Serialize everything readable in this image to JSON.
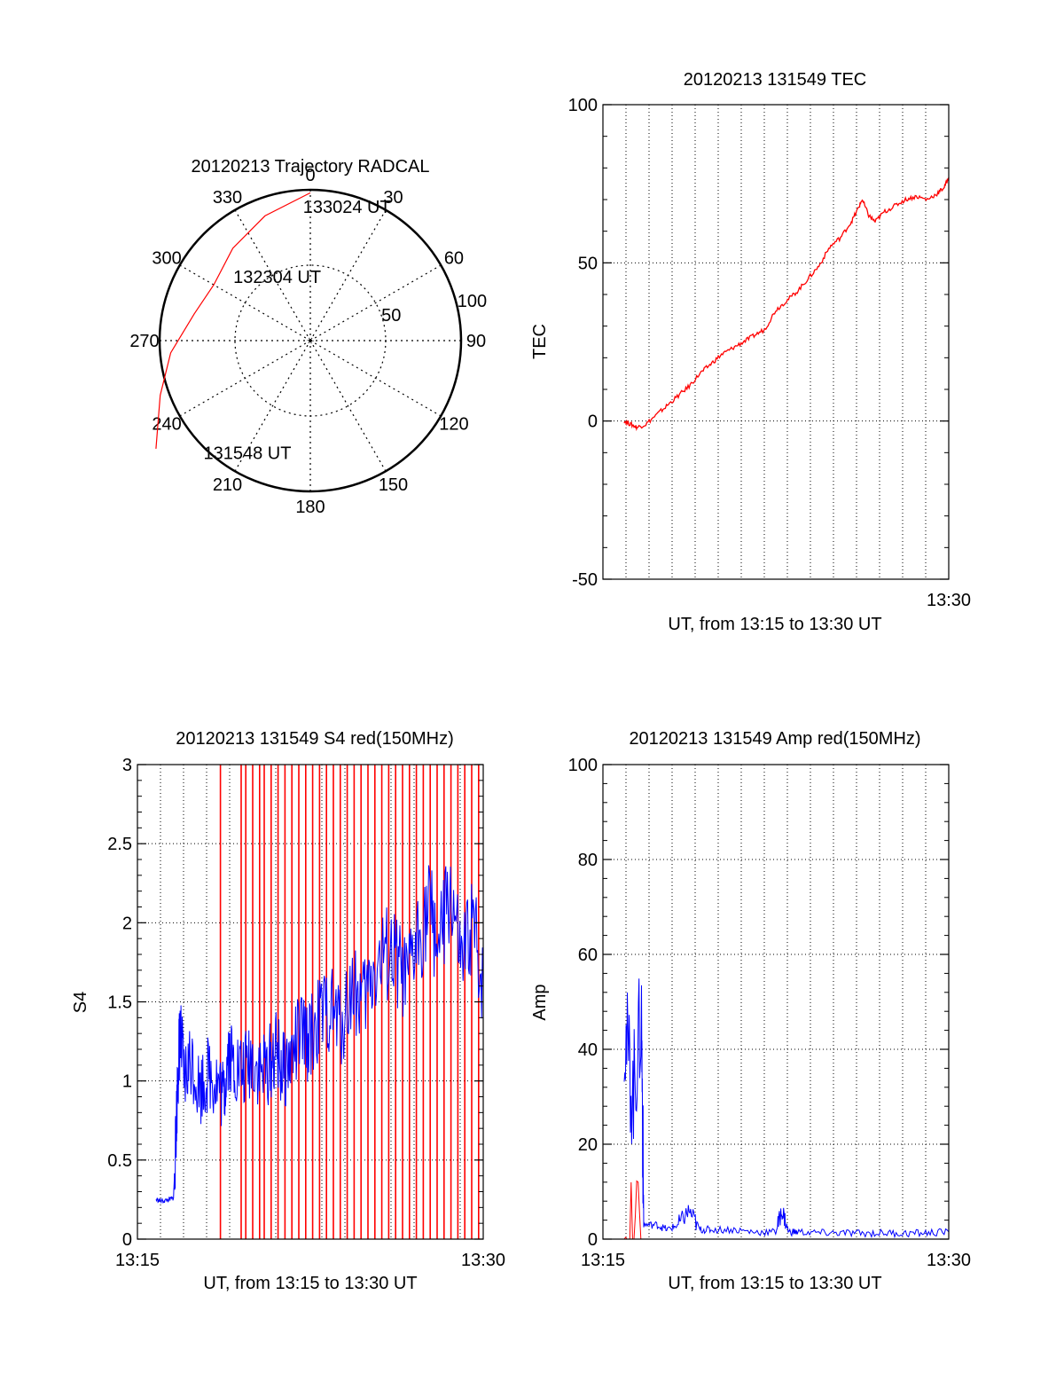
{
  "chart_data": [
    {
      "id": "polar",
      "type": "polar",
      "title": "20120213 Trajectory RADCAL",
      "azimuth_labels": [
        "0",
        "30",
        "60",
        "90",
        "120",
        "150",
        "180",
        "210",
        "240",
        "270",
        "300",
        "330"
      ],
      "radial_ring_labels": [
        "50",
        "100"
      ],
      "radial_max": 100,
      "track": {
        "points": [
          {
            "az": 0,
            "el_pct": 98
          },
          {
            "az": 340,
            "el_pct": 88
          },
          {
            "az": 320,
            "el_pct": 80
          },
          {
            "az": 300,
            "el_pct": 74
          },
          {
            "az": 283,
            "el_pct": 79
          },
          {
            "az": 265,
            "el_pct": 93
          },
          {
            "az": 250,
            "el_pct": 106
          },
          {
            "az": 235,
            "el_pct": 125
          }
        ],
        "labels": [
          {
            "text": "133024 UT",
            "az": 16,
            "el_pct": 88
          },
          {
            "text": "132304 UT",
            "az": 330,
            "el_pct": 44
          },
          {
            "text": "131548 UT",
            "az": 208,
            "el_pct": 89
          }
        ]
      },
      "colors": {
        "track": "#ff0000",
        "axes": "#000000"
      }
    },
    {
      "id": "tec",
      "type": "line",
      "title": "20120213 131549 TEC",
      "ylabel": "TEC",
      "xlabel": "UT, from 13:15 to 13:30 UT",
      "xticklabels": [
        "",
        "13:30"
      ],
      "xlim": [
        0,
        15
      ],
      "ylim": [
        -50,
        100
      ],
      "yticks": [
        -50,
        0,
        50,
        100
      ],
      "series": [
        {
          "color": "#ff0000",
          "x": [
            0.0,
            0.3,
            0.6,
            1.0,
            1.5,
            2.0,
            2.5,
            3.0,
            3.5,
            4.0,
            4.5,
            5.0,
            5.5,
            6.0,
            6.5,
            7.0,
            7.5,
            8.0,
            8.5,
            9.0,
            9.5,
            10.0,
            10.5,
            10.8,
            11.0,
            11.3,
            11.6,
            12.0,
            12.5,
            13.0,
            13.5,
            14.0,
            14.5,
            14.8,
            15.0
          ],
          "values": [
            0,
            -1,
            -2,
            -1,
            2,
            5,
            8,
            11,
            15,
            18,
            21,
            23,
            25,
            27,
            29,
            35,
            38,
            41,
            45,
            49,
            55,
            58,
            63,
            67,
            70,
            65,
            63,
            66,
            68,
            70,
            71,
            70,
            72,
            74,
            77
          ]
        }
      ]
    },
    {
      "id": "s4",
      "type": "line",
      "title": "20120213 131549 S4 red(150MHz)",
      "ylabel": "S4",
      "xlabel": "UT, from 13:15 to 13:30 UT",
      "xticklabels": [
        "13:15",
        "13:30"
      ],
      "xlim": [
        0,
        15
      ],
      "ylim": [
        0,
        3
      ],
      "yticks": [
        0,
        0.5,
        1,
        1.5,
        2,
        2.5,
        3
      ],
      "series": [
        {
          "color": "#0000ff",
          "x": [
            0.0,
            0.3,
            0.6,
            0.8,
            0.9,
            1.0,
            1.1,
            1.3,
            1.6,
            2.0,
            2.4,
            2.8,
            3.1,
            3.3,
            3.6,
            4.0,
            4.4,
            4.8,
            5.2,
            5.5,
            5.8,
            6.2,
            6.6,
            7.0,
            7.5,
            8.0,
            8.5,
            9.0,
            9.5,
            10.0,
            10.5,
            11.0,
            11.5,
            12.0,
            12.5,
            13.0,
            13.5,
            14.0,
            14.5,
            15.0
          ],
          "values": [
            0.25,
            0.24,
            0.25,
            0.26,
            0.6,
            1.05,
            1.3,
            1.0,
            1.15,
            0.95,
            1.05,
            1.0,
            0.9,
            1.2,
            1.1,
            1.05,
            1.15,
            1.05,
            1.1,
            1.2,
            1.05,
            1.15,
            1.3,
            1.25,
            1.4,
            1.45,
            1.35,
            1.6,
            1.5,
            1.7,
            1.8,
            1.75,
            1.6,
            1.9,
            2.1,
            1.85,
            2.2,
            1.7,
            2.0,
            1.6
          ]
        }
      ],
      "red_spikes_x": [
        3.6,
        4.5,
        4.7,
        5.0,
        5.3,
        5.5,
        5.8,
        6.1,
        6.4,
        6.7,
        7.0,
        7.3,
        7.6,
        7.9,
        8.2,
        8.5,
        8.8,
        9.1,
        9.4,
        9.7,
        10.0,
        10.3,
        10.6,
        10.9,
        11.2,
        11.5,
        11.8,
        12.1,
        12.4,
        12.7,
        13.0,
        13.3,
        13.6,
        13.9,
        14.2,
        14.5,
        14.8
      ]
    },
    {
      "id": "amp",
      "type": "line",
      "title": "20120213 131549 Amp red(150MHz)",
      "ylabel": "Amp",
      "xlabel": "UT, from 13:15 to 13:30 UT",
      "xticklabels": [
        "13:15",
        "13:30"
      ],
      "xlim": [
        0,
        15
      ],
      "ylim": [
        0,
        100
      ],
      "yticks": [
        0,
        20,
        40,
        60,
        80,
        100
      ],
      "series": [
        {
          "color": "#0000ff",
          "x": [
            0.0,
            0.4,
            0.8,
            0.9,
            1.5,
            2.0,
            2.5,
            3.0,
            3.5,
            4.0,
            5.0,
            6.0,
            7.0,
            7.3,
            7.6,
            8.0,
            9.0,
            10.0,
            11.0,
            12.0,
            13.0,
            14.0,
            15.0
          ],
          "values": [
            45,
            30,
            47,
            3,
            3,
            2,
            3,
            6,
            2,
            2,
            2,
            1.5,
            1.5,
            6,
            1.5,
            1.5,
            1.3,
            1.3,
            1.2,
            1.3,
            1.2,
            1.3,
            1.5
          ]
        },
        {
          "color": "#ff0000",
          "x": [
            0.0,
            0.9
          ],
          "values": [
            0,
            0
          ]
        }
      ]
    }
  ]
}
